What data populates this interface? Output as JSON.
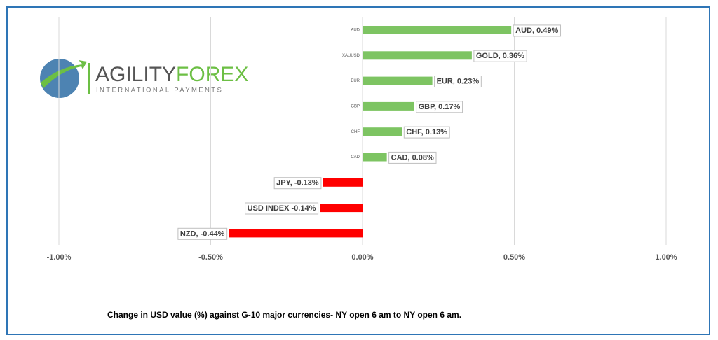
{
  "chart_data": {
    "type": "hbar",
    "categories": [
      "AUD",
      "XAUUSD",
      "EUR",
      "GBP",
      "CHF",
      "CAD",
      null,
      null,
      null
    ],
    "values": [
      0.49,
      0.36,
      0.23,
      0.17,
      0.13,
      0.08,
      -0.13,
      -0.14,
      -0.44
    ],
    "value_labels": [
      "AUD, 0.49%",
      "GOLD, 0.36%",
      "EUR, 0.23%",
      "GBP, 0.17%",
      "CHF, 0.13%",
      "CAD, 0.08%",
      "JPY, -0.13%",
      "USD INDEX -0.14%",
      "NZD, -0.44%"
    ],
    "positive_color": "#7dc462",
    "negative_color": "#ff0000",
    "xlim": [
      -1.1,
      1.1
    ],
    "xticks": [
      {
        "value": -1,
        "label": "-1.00%"
      },
      {
        "value": -0.5,
        "label": "-0.50%"
      },
      {
        "value": 0,
        "label": "0.00%"
      },
      {
        "value": 0.5,
        "label": "0.50%"
      },
      {
        "value": 1,
        "label": "1.00%"
      }
    ],
    "grid": true,
    "caption": "Change in  USD value (%)  against  G-10 major currencies- NY open 6 am to NY open 6 am."
  },
  "logo": {
    "brand": "AGILITY",
    "brand_accent": "FOREX",
    "tagline": "INTERNATIONAL PAYMENTS"
  }
}
